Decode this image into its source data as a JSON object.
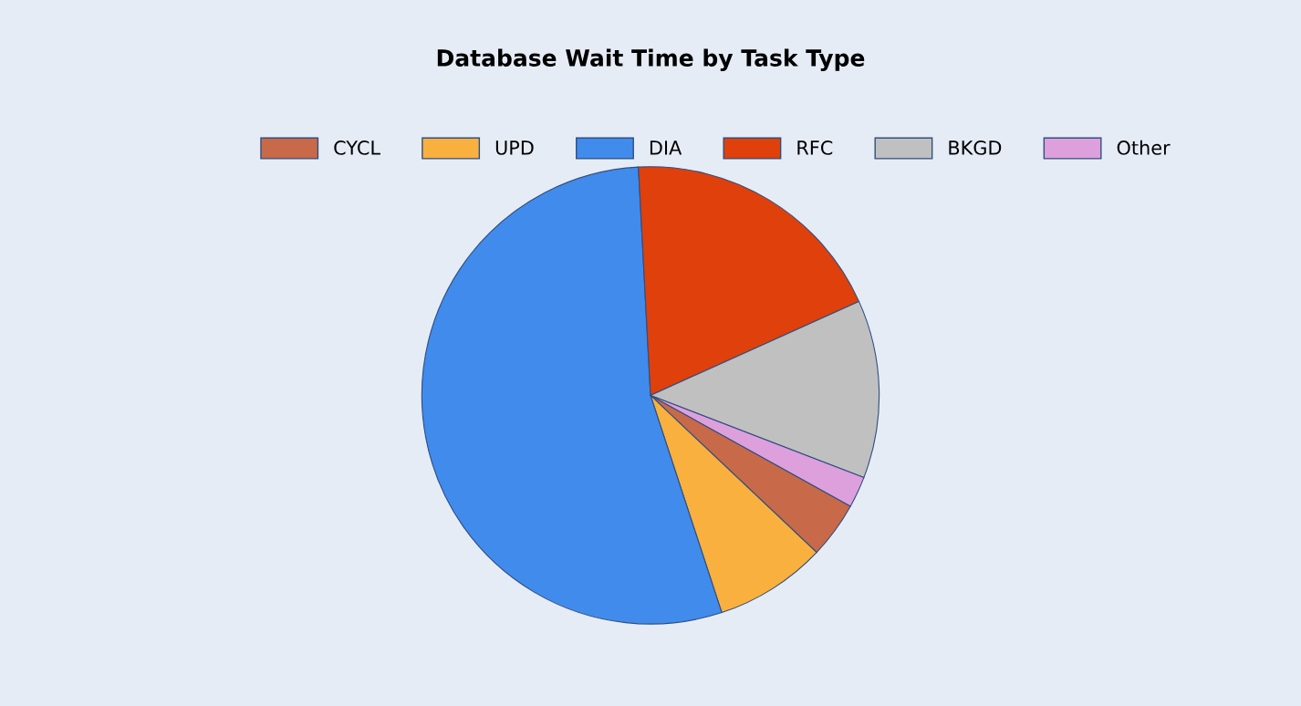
{
  "chart_data": {
    "type": "pie",
    "title": "Database Wait Time by Task Type",
    "categories": [
      "CYCL",
      "UPD",
      "DIA",
      "RFC",
      "BKGD",
      "Other"
    ],
    "values": [
      4.0,
      7.9,
      54.2,
      19.1,
      12.6,
      2.2
    ],
    "colors": [
      "#c8694a",
      "#f9b03f",
      "#418bec",
      "#df400c",
      "#c0c0c0",
      "#dda0dd"
    ],
    "legend": "top"
  }
}
